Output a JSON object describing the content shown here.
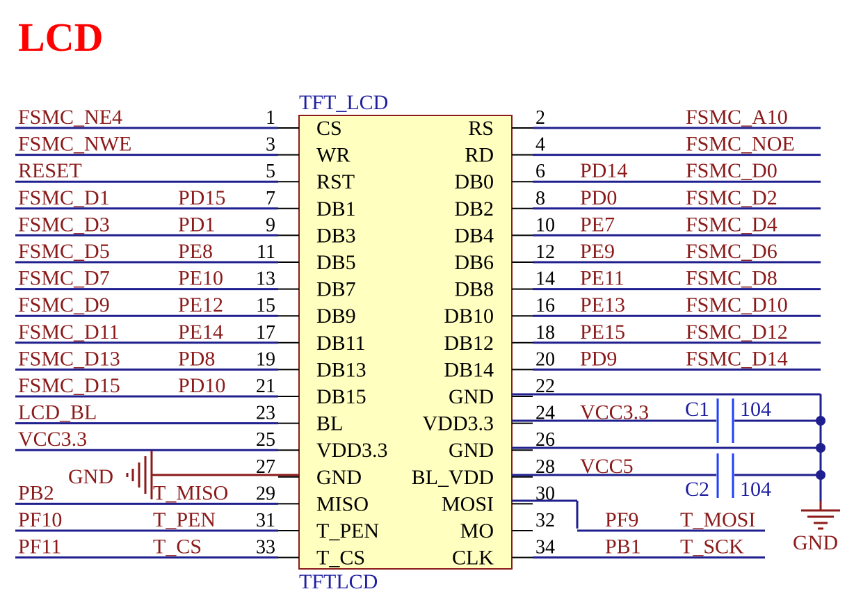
{
  "title": "LCD",
  "component": {
    "designator": "TFT_LCD",
    "footprint": "TFTLCD",
    "body_color": "#ffffc0",
    "border_color": "#8b1a1a"
  },
  "left_pins": [
    {
      "num": "1",
      "name": "CS",
      "net": "FSMC_NE4",
      "port": ""
    },
    {
      "num": "3",
      "name": "WR",
      "net": "FSMC_NWE",
      "port": ""
    },
    {
      "num": "5",
      "name": "RST",
      "net": "RESET",
      "port": ""
    },
    {
      "num": "7",
      "name": "DB1",
      "net": "FSMC_D1",
      "port": "PD15"
    },
    {
      "num": "9",
      "name": "DB3",
      "net": "FSMC_D3",
      "port": "PD1"
    },
    {
      "num": "11",
      "name": "DB5",
      "net": "FSMC_D5",
      "port": "PE8"
    },
    {
      "num": "13",
      "name": "DB7",
      "net": "FSMC_D7",
      "port": "PE10"
    },
    {
      "num": "15",
      "name": "DB9",
      "net": "FSMC_D9",
      "port": "PE12"
    },
    {
      "num": "17",
      "name": "DB11",
      "net": "FSMC_D11",
      "port": "PE14"
    },
    {
      "num": "19",
      "name": "DB13",
      "net": "FSMC_D13",
      "port": "PD8"
    },
    {
      "num": "21",
      "name": "DB15",
      "net": "FSMC_D15",
      "port": "PD10"
    },
    {
      "num": "23",
      "name": "BL",
      "net": "LCD_BL",
      "port": ""
    },
    {
      "num": "25",
      "name": "VDD3.3",
      "net": "VCC3.3",
      "port": ""
    },
    {
      "num": "27",
      "name": "GND",
      "net": "",
      "port": ""
    },
    {
      "num": "29",
      "name": "MISO",
      "net": "PB2",
      "port": "T_MISO"
    },
    {
      "num": "31",
      "name": "T_PEN",
      "net": "PF10",
      "port": "T_PEN"
    },
    {
      "num": "33",
      "name": "T_CS",
      "net": "PF11",
      "port": "T_CS"
    }
  ],
  "right_pins": [
    {
      "num": "2",
      "name": "RS",
      "port": "",
      "net": "FSMC_A10"
    },
    {
      "num": "4",
      "name": "RD",
      "port": "",
      "net": "FSMC_NOE"
    },
    {
      "num": "6",
      "name": "DB0",
      "port": "PD14",
      "net": "FSMC_D0"
    },
    {
      "num": "8",
      "name": "DB2",
      "port": "PD0",
      "net": "FSMC_D2"
    },
    {
      "num": "10",
      "name": "DB4",
      "port": "PE7",
      "net": "FSMC_D4"
    },
    {
      "num": "12",
      "name": "DB6",
      "port": "PE9",
      "net": "FSMC_D6"
    },
    {
      "num": "14",
      "name": "DB8",
      "port": "PE11",
      "net": "FSMC_D8"
    },
    {
      "num": "16",
      "name": "DB10",
      "port": "PE13",
      "net": "FSMC_D10"
    },
    {
      "num": "18",
      "name": "DB12",
      "port": "PE15",
      "net": "FSMC_D12"
    },
    {
      "num": "20",
      "name": "DB14",
      "port": "PD9",
      "net": "FSMC_D14"
    },
    {
      "num": "22",
      "name": "GND",
      "port": "",
      "net": ""
    },
    {
      "num": "24",
      "name": "VDD3.3",
      "port": "VCC3.3",
      "net": ""
    },
    {
      "num": "26",
      "name": "GND",
      "port": "",
      "net": ""
    },
    {
      "num": "28",
      "name": "BL_VDD",
      "port": "VCC5",
      "net": ""
    },
    {
      "num": "30",
      "name": "MOSI",
      "port": "",
      "net": ""
    },
    {
      "num": "32",
      "name": "MO",
      "port": "PF9",
      "net": "T_MOSI"
    },
    {
      "num": "34",
      "name": "CLK",
      "port": "PB1",
      "net": "T_SCK"
    }
  ],
  "capacitors": [
    {
      "ref": "C1",
      "value": "104"
    },
    {
      "ref": "C2",
      "value": "104"
    }
  ],
  "gnd_labels": {
    "left": "GND",
    "right": "GND"
  }
}
